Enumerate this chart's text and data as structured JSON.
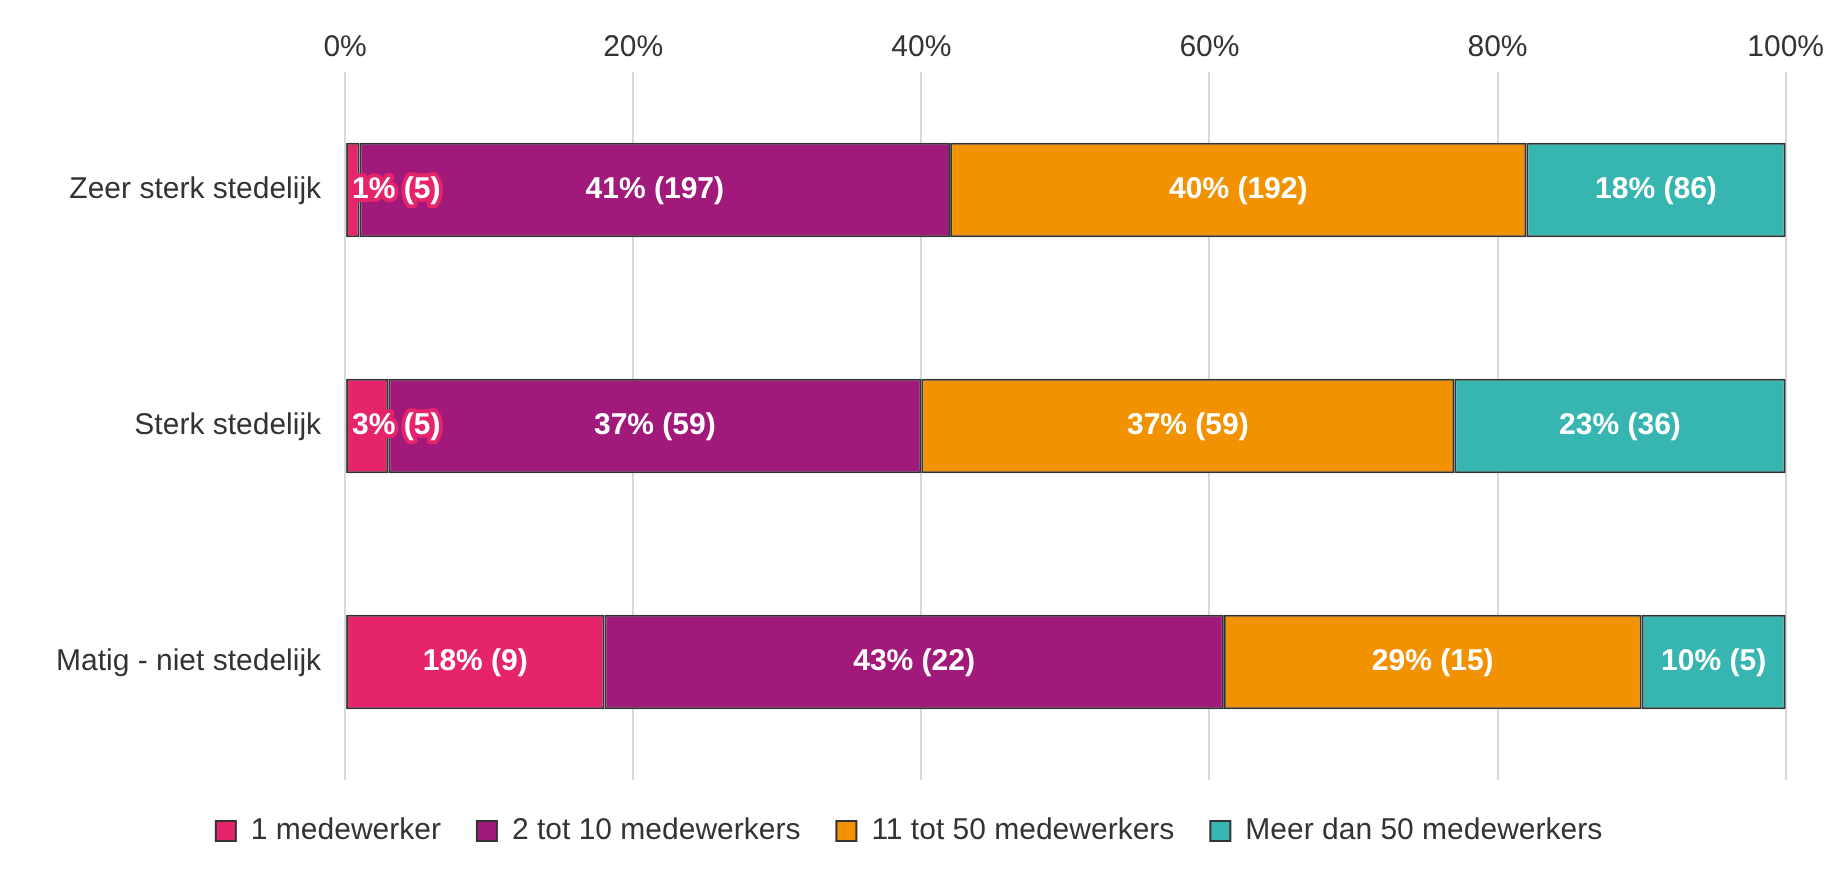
{
  "chart_data": {
    "type": "bar",
    "orientation": "horizontal",
    "stacked": true,
    "categories": [
      "Zeer sterk stedelijk",
      "Sterk stedelijk",
      "Matig - niet stedelijk"
    ],
    "series": [
      {
        "name": "1 medewerker",
        "color": "#e6246b",
        "values": [
          1,
          3,
          18
        ],
        "value_labels": [
          "1% (5)",
          "3% (5)",
          "18% (9)"
        ]
      },
      {
        "name": "2 tot 10 medewerkers",
        "color": "#a0197b",
        "values": [
          41,
          37,
          43
        ],
        "value_labels": [
          "41% (197)",
          "37% (59)",
          "43% (22)"
        ]
      },
      {
        "name": "11 tot 50 medewerkers",
        "color": "#f39200",
        "values": [
          40,
          37,
          29
        ],
        "value_labels": [
          "40% (192)",
          "37% (59)",
          "29% (15)"
        ]
      },
      {
        "name": "Meer dan 50 medewerkers",
        "color": "#36b5b1",
        "values": [
          18,
          23,
          10
        ],
        "value_labels": [
          "18% (86)",
          "23% (36)",
          "10% (5)"
        ]
      }
    ],
    "xlim": [
      0,
      100
    ],
    "xticks": [
      {
        "value": 0,
        "label": "0%"
      },
      {
        "value": 20,
        "label": "20%"
      },
      {
        "value": 40,
        "label": "40%"
      },
      {
        "value": 60,
        "label": "60%"
      },
      {
        "value": 80,
        "label": "80%"
      },
      {
        "value": 100,
        "label": "100%"
      }
    ],
    "grid": "x",
    "legend": "bottom"
  }
}
